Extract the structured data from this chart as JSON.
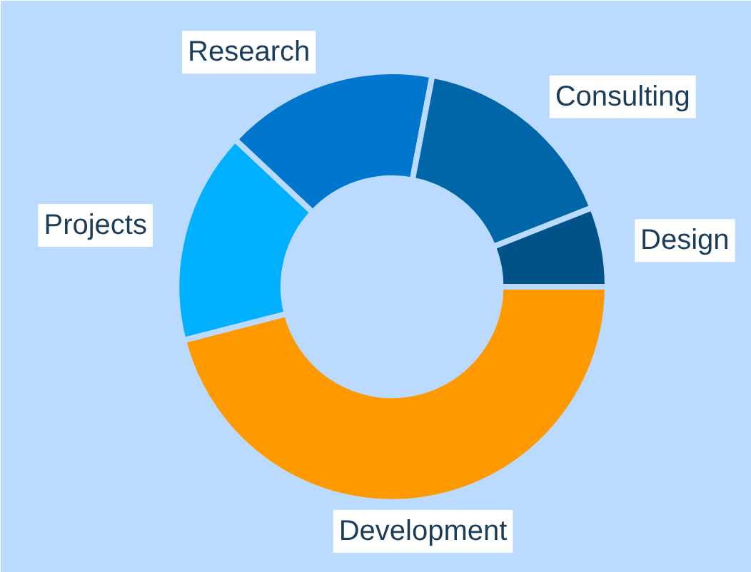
{
  "chart_data": {
    "type": "donut",
    "categories": [
      "Development",
      "Projects",
      "Research",
      "Consulting",
      "Design"
    ],
    "values": [
      46,
      16,
      16,
      16,
      6
    ],
    "colors": [
      "#ff9900",
      "#00b0ff",
      "#0077cc",
      "#0066a8",
      "#005288"
    ]
  }
}
